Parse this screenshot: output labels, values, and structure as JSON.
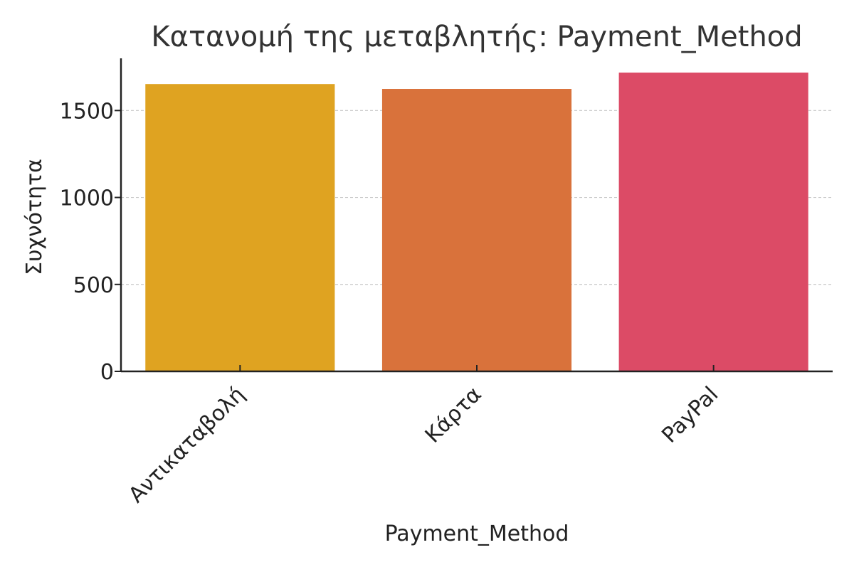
{
  "chart_data": {
    "type": "bar",
    "title": "Κατανομή της μεταβλητής: Payment_Method",
    "xlabel": "Payment_Method",
    "ylabel": "Συχνότητα",
    "categories": [
      "Αντικαταβολή",
      "Κάρτα",
      "PayPal"
    ],
    "values": [
      1652,
      1624,
      1718
    ],
    "colors": [
      "#dfa321",
      "#d9723b",
      "#dc4b66"
    ],
    "ylim": [
      0,
      1800
    ],
    "yticks": [
      0,
      500,
      1000,
      1500
    ],
    "grid": "y-dashed",
    "legend": "none"
  }
}
